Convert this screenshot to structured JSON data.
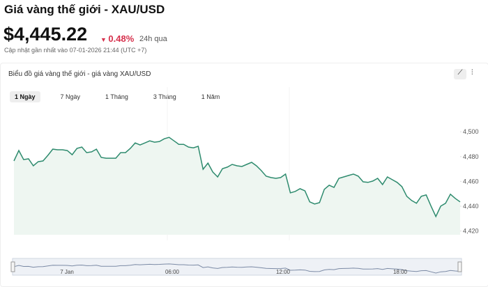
{
  "header": {
    "title": "Giá vàng thế giới - XAU/USD",
    "price": "$4,445.22",
    "change": "0.48%",
    "period": "24h qua",
    "updated": "Cập nhật gần nhất vào 07-01-2026 21:44 (UTC +7)"
  },
  "card": {
    "title": "Biểu đồ giá vàng thế giới - giá vàng XAU/USD",
    "tabs": [
      "1 Ngày",
      "7 Ngày",
      "1 Tháng",
      "3 Tháng",
      "1 Năm"
    ],
    "navigator_labels": [
      "7 Jan",
      "06:00",
      "12:00",
      "18:00"
    ]
  },
  "chart_data": {
    "type": "line",
    "color": "#2e8b6e",
    "values": [
      4476.5,
      4484.9,
      4477.6,
      4478.2,
      4472.6,
      4475.9,
      4476.5,
      4481.0,
      4486.0,
      4485.5,
      4485.5,
      4484.9,
      4481.5,
      4486.6,
      4487.7,
      4483.2,
      4483.8,
      4486.0,
      4479.3,
      4478.7,
      4478.7,
      4478.7,
      4483.2,
      4483.2,
      4486.6,
      4491.0,
      4489.4,
      4491.0,
      4492.7,
      4491.6,
      4492.2,
      4494.4,
      4495.5,
      4492.7,
      4489.9,
      4489.9,
      4487.7,
      4487.1,
      4488.3,
      4469.8,
      4474.8,
      4467.6,
      4463.6,
      4470.3,
      4471.5,
      4473.7,
      4472.6,
      4472.0,
      4473.7,
      4475.4,
      4472.6,
      4468.7,
      4464.2,
      4463.1,
      4462.5,
      4463.1,
      4465.9,
      4450.8,
      4451.9,
      4454.1,
      4452.4,
      4443.5,
      4441.8,
      4442.9,
      4453.6,
      4456.9,
      4455.2,
      4462.5,
      4463.6,
      4464.8,
      4465.9,
      4464.2,
      4459.7,
      4459.2,
      4460.3,
      4462.5,
      4457.5,
      4463.6,
      4461.4,
      4459.2,
      4455.8,
      4448.0,
      4444.6,
      4442.4,
      4448.0,
      4449.1,
      4440.1,
      4431.7,
      4440.1,
      4442.4,
      4449.7,
      4446.3,
      4443.5
    ],
    "ylim": [
      4417,
      4522
    ],
    "yticks": [
      {
        "value": 4420,
        "label": "4,420"
      },
      {
        "value": 4440,
        "label": "4,440"
      },
      {
        "value": 4460,
        "label": "4,460"
      },
      {
        "value": 4480,
        "label": "4,480"
      },
      {
        "value": 4500,
        "label": "4,500"
      }
    ]
  }
}
